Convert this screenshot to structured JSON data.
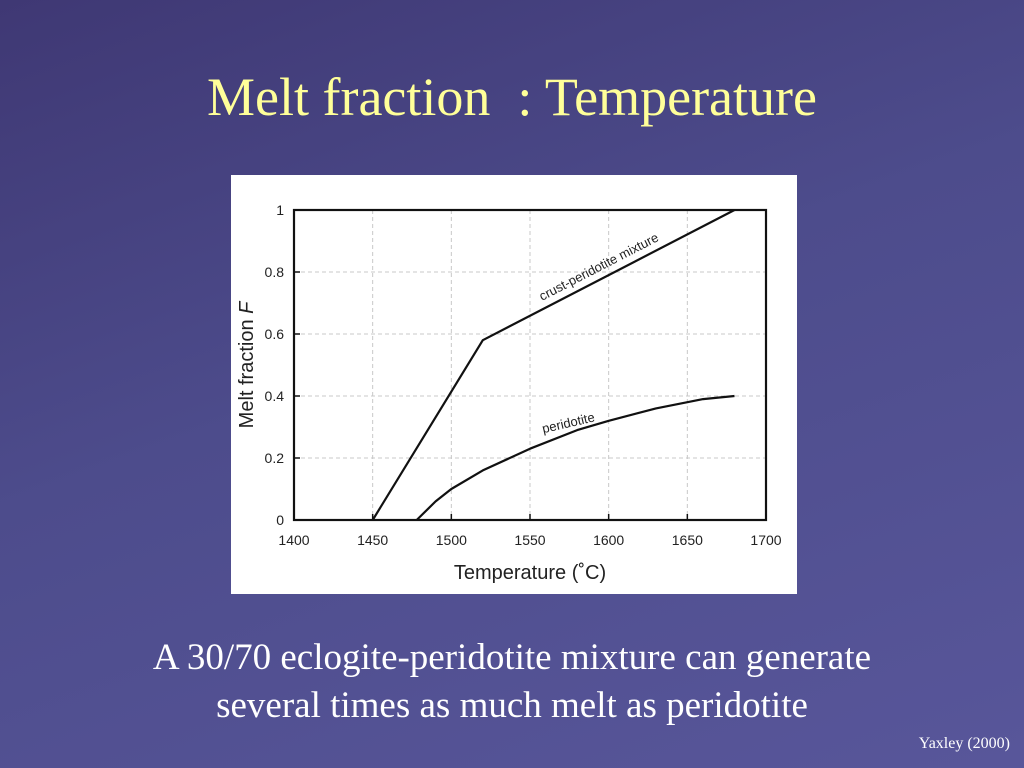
{
  "slide": {
    "title": "Melt fraction  : Temperature",
    "caption_line1": "A 30/70 eclogite-peridotite mixture can generate",
    "caption_line2": "several times as much melt as peridotite",
    "credit": "Yaxley (2000)",
    "title_color": "#ffff99",
    "background_color": "#4d4c8c"
  },
  "chart_data": {
    "type": "line",
    "xlabel": "Temperature (˚C)",
    "ylabel_text": "Melt fraction",
    "ylabel_symbol": "F",
    "xlim": [
      1400,
      1700
    ],
    "ylim": [
      0,
      1
    ],
    "xticks": [
      1400,
      1450,
      1500,
      1550,
      1600,
      1650,
      1700
    ],
    "yticks": [
      0,
      0.2,
      0.4,
      0.6,
      0.8,
      1
    ],
    "ytick_labels": [
      "0",
      "0.2",
      "0.4",
      "0.6",
      "0.8",
      "1"
    ],
    "grid": true,
    "series": [
      {
        "name": "crust-peridotite mixture",
        "x": [
          1450,
          1520,
          1680
        ],
        "y": [
          0,
          0.58,
          1.0
        ]
      },
      {
        "name": "peridotite",
        "x": [
          1478,
          1490,
          1500,
          1520,
          1550,
          1580,
          1600,
          1630,
          1660,
          1680
        ],
        "y": [
          0,
          0.06,
          0.1,
          0.16,
          0.23,
          0.29,
          0.32,
          0.36,
          0.39,
          0.4
        ]
      }
    ]
  }
}
